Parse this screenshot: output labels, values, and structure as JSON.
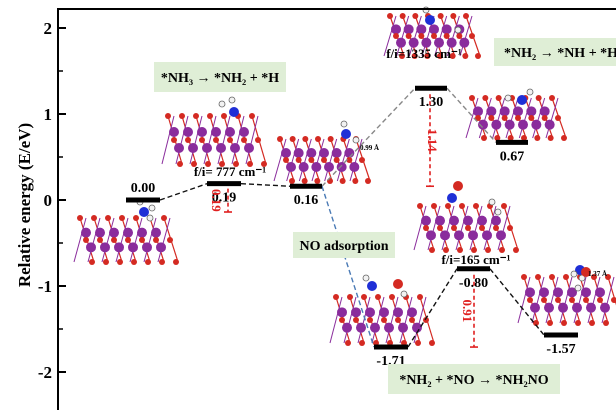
{
  "chart_data": {
    "type": "line",
    "ylabel": "Relative energy (E/eV)",
    "ylim": [
      -2.4,
      2.2
    ],
    "y_ticks": [
      -2,
      -1,
      0,
      1,
      2
    ],
    "y_tick_labels": [
      "-2",
      "-1",
      "0",
      "1",
      "2"
    ],
    "grid": false,
    "levels": [
      {
        "id": "s0",
        "value": 0.0,
        "label": "0.00"
      },
      {
        "id": "ts1",
        "value": 0.19,
        "label": "0.19"
      },
      {
        "id": "s1",
        "value": 0.16,
        "label": "0.16"
      },
      {
        "id": "ts2",
        "value": 1.3,
        "label": "1.30"
      },
      {
        "id": "s2",
        "value": 0.67,
        "label": "0.67"
      },
      {
        "id": "s3",
        "value": -1.71,
        "label": "-1.71"
      },
      {
        "id": "ts3",
        "value": -0.8,
        "label": "-0.80"
      },
      {
        "id": "s4",
        "value": -1.57,
        "label": "-1.57"
      }
    ],
    "frequency_labels": [
      {
        "ts": "ts1",
        "text": "f/i= 777 cm⁻¹"
      },
      {
        "ts": "ts2",
        "text": "f/i=1335 cm⁻¹"
      },
      {
        "ts": "ts3",
        "text": "f/i=165 cm⁻¹"
      }
    ],
    "barriers": [
      {
        "value": 0.19,
        "label": "0.19"
      },
      {
        "value": 1.14,
        "label": "1.14"
      },
      {
        "value": 0.91,
        "label": "0.91"
      }
    ],
    "annotations": [
      {
        "text": "*NH₃ → *NH₂ + *H"
      },
      {
        "text": "*NH₂ → *NH + *H"
      },
      {
        "text": "NO adsorption"
      },
      {
        "text": "*NH₂ + *NO → *NH₂NO"
      }
    ],
    "bond_labels": [
      "0.99 Å",
      "1.37 Å"
    ]
  },
  "colors": {
    "axis": "#000000",
    "barrier": "#e02020",
    "path_black": "#111111",
    "path_grey": "#888888",
    "path_blue": "#4a7ab5",
    "label_bg": "#dfeed6",
    "atom_purple": "#8a2c9c",
    "atom_red": "#d42a22",
    "atom_blue": "#1f2fd6",
    "atom_white": "#f2f2f2"
  }
}
